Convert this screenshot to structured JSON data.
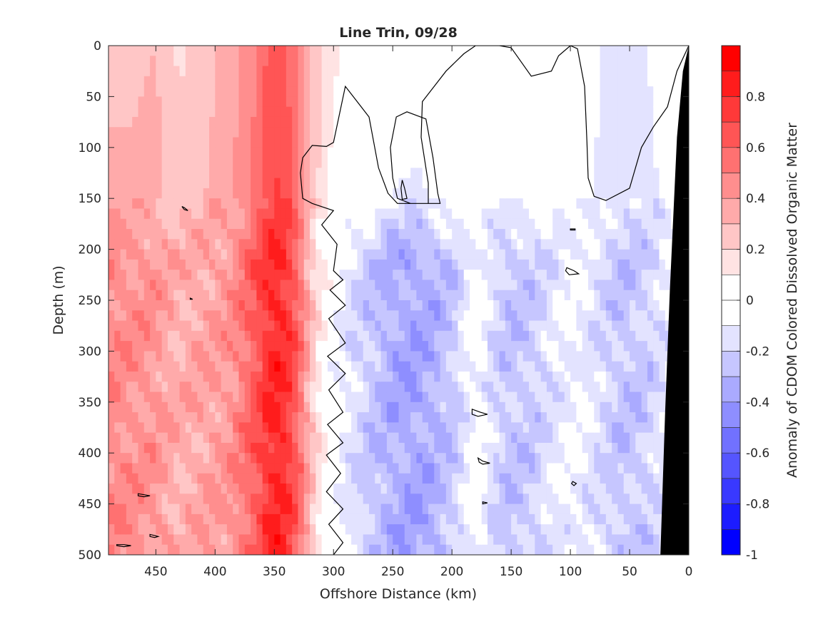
{
  "chart_data": {
    "type": "contourf",
    "title": "Line Trin, 09/28",
    "xlabel": "Offshore Distance (km)",
    "ylabel": "Depth (m)",
    "colorbar_label": "Anomaly of CDOM Colored Dissolved Organic Matter",
    "xlim": [
      490,
      0
    ],
    "x_reversed": true,
    "ylim": [
      0,
      500
    ],
    "y_reversed": true,
    "xticks": [
      450,
      400,
      350,
      300,
      250,
      200,
      150,
      100,
      50,
      0
    ],
    "yticks": [
      0,
      50,
      100,
      150,
      200,
      250,
      300,
      350,
      400,
      450,
      500
    ],
    "clim": [
      -1,
      1
    ],
    "colorbar_ticks": [
      0.8,
      0.6,
      0.4,
      0.2,
      0,
      -0.2,
      -0.4,
      -0.6,
      -0.8,
      -1
    ],
    "colorbar_levels": [
      {
        "lo": 0.9,
        "hi": 1.0,
        "color": "#ff0000"
      },
      {
        "lo": 0.8,
        "hi": 0.9,
        "color": "#ff1c1c"
      },
      {
        "lo": 0.7,
        "hi": 0.8,
        "color": "#ff3939"
      },
      {
        "lo": 0.6,
        "hi": 0.7,
        "color": "#ff5555"
      },
      {
        "lo": 0.5,
        "hi": 0.6,
        "color": "#ff7171"
      },
      {
        "lo": 0.4,
        "hi": 0.5,
        "color": "#ff8e8e"
      },
      {
        "lo": 0.3,
        "hi": 0.4,
        "color": "#ffaaaa"
      },
      {
        "lo": 0.2,
        "hi": 0.3,
        "color": "#ffc6c6"
      },
      {
        "lo": 0.1,
        "hi": 0.2,
        "color": "#ffe3e3"
      },
      {
        "lo": 0.0,
        "hi": 0.1,
        "color": "#ffffff"
      },
      {
        "lo": -0.1,
        "hi": 0.0,
        "color": "#ffffff"
      },
      {
        "lo": -0.2,
        "hi": -0.1,
        "color": "#e3e3ff"
      },
      {
        "lo": -0.3,
        "hi": -0.2,
        "color": "#c6c6ff"
      },
      {
        "lo": -0.4,
        "hi": -0.3,
        "color": "#aaaaff"
      },
      {
        "lo": -0.5,
        "hi": -0.4,
        "color": "#8e8eff"
      },
      {
        "lo": -0.6,
        "hi": -0.5,
        "color": "#7171ff"
      },
      {
        "lo": -0.7,
        "hi": -0.6,
        "color": "#5555ff"
      },
      {
        "lo": -0.8,
        "hi": -0.7,
        "color": "#3939ff"
      },
      {
        "lo": -0.9,
        "hi": -0.8,
        "color": "#1c1cff"
      },
      {
        "lo": -1.0,
        "hi": -0.9,
        "color": "#0000ff"
      }
    ],
    "field_profile": [
      {
        "x": 490,
        "surface": 0.26,
        "deep": 0.48
      },
      {
        "x": 470,
        "surface": 0.27,
        "deep": 0.44
      },
      {
        "x": 450,
        "surface": 0.3,
        "deep": 0.42
      },
      {
        "x": 430,
        "surface": 0.18,
        "deep": 0.32
      },
      {
        "x": 410,
        "surface": 0.25,
        "deep": 0.38
      },
      {
        "x": 390,
        "surface": 0.34,
        "deep": 0.4
      },
      {
        "x": 370,
        "surface": 0.45,
        "deep": 0.58
      },
      {
        "x": 355,
        "surface": 0.62,
        "deep": 0.78
      },
      {
        "x": 345,
        "surface": 0.66,
        "deep": 0.82
      },
      {
        "x": 335,
        "surface": 0.55,
        "deep": 0.7
      },
      {
        "x": 325,
        "surface": 0.4,
        "deep": 0.45
      },
      {
        "x": 315,
        "surface": 0.25,
        "deep": 0.18
      },
      {
        "x": 305,
        "surface": 0.14,
        "deep": 0.02
      },
      {
        "x": 290,
        "surface": 0.08,
        "deep": -0.12
      },
      {
        "x": 270,
        "surface": 0.03,
        "deep": -0.24
      },
      {
        "x": 250,
        "surface": 0.02,
        "deep": -0.34
      },
      {
        "x": 230,
        "surface": 0.0,
        "deep": -0.37
      },
      {
        "x": 210,
        "surface": 0.05,
        "deep": -0.3
      },
      {
        "x": 195,
        "surface": 0.01,
        "deep": -0.2
      },
      {
        "x": 180,
        "surface": 0.0,
        "deep": -0.02
      },
      {
        "x": 165,
        "surface": 0.0,
        "deep": -0.18
      },
      {
        "x": 150,
        "surface": -0.02,
        "deep": -0.26
      },
      {
        "x": 130,
        "surface": 0.01,
        "deep": -0.22
      },
      {
        "x": 110,
        "surface": -0.03,
        "deep": -0.12
      },
      {
        "x": 95,
        "surface": 0.04,
        "deep": -0.08
      },
      {
        "x": 75,
        "surface": -0.1,
        "deep": -0.18
      },
      {
        "x": 55,
        "surface": -0.14,
        "deep": -0.26
      },
      {
        "x": 35,
        "surface": -0.1,
        "deep": -0.22
      },
      {
        "x": 15,
        "surface": -0.02,
        "deep": -0.1
      },
      {
        "x": 0,
        "surface": 0.0,
        "deep": 0.0
      }
    ],
    "bottom_mask": [
      {
        "x": 0,
        "depth": 0
      },
      {
        "x": 5,
        "depth": 25
      },
      {
        "x": 10,
        "depth": 90
      },
      {
        "x": 16,
        "depth": 240
      },
      {
        "x": 20,
        "depth": 360
      },
      {
        "x": 24,
        "depth": 500
      }
    ],
    "bottom_mask_color": "#000000",
    "zero_contour": {
      "main": [
        [
          0,
          0
        ],
        [
          10,
          25
        ],
        [
          18,
          60
        ],
        [
          30,
          80
        ],
        [
          40,
          100
        ],
        [
          50,
          140
        ],
        [
          70,
          152
        ],
        [
          80,
          148
        ],
        [
          85,
          130
        ],
        [
          86,
          95
        ],
        [
          88,
          40
        ],
        [
          94,
          3
        ],
        [
          100,
          0
        ],
        [
          110,
          10
        ],
        [
          116,
          25
        ],
        [
          133,
          30
        ],
        [
          150,
          2
        ],
        [
          160,
          0
        ],
        [
          180,
          0
        ],
        [
          190,
          8
        ],
        [
          205,
          25
        ],
        [
          225,
          55
        ],
        [
          226,
          90
        ],
        [
          220,
          135
        ],
        [
          220,
          155
        ],
        [
          235,
          155
        ],
        [
          246,
          150
        ],
        [
          250,
          130
        ],
        [
          252,
          100
        ],
        [
          247,
          70
        ],
        [
          238,
          65
        ],
        [
          222,
          72
        ],
        [
          216,
          110
        ],
        [
          212,
          145
        ],
        [
          210,
          155
        ],
        [
          246,
          155
        ],
        [
          254,
          145
        ],
        [
          262,
          120
        ],
        [
          270,
          70
        ],
        [
          290,
          40
        ],
        [
          300,
          95
        ],
        [
          306,
          99
        ],
        [
          318,
          98
        ],
        [
          326,
          110
        ],
        [
          328,
          125
        ],
        [
          326,
          150
        ],
        [
          318,
          155
        ],
        [
          300,
          162
        ],
        [
          310,
          176
        ],
        [
          297,
          195
        ],
        [
          300,
          221
        ],
        [
          292,
          230
        ],
        [
          303,
          240
        ],
        [
          290,
          255
        ],
        [
          304,
          268
        ],
        [
          290,
          292
        ],
        [
          305,
          305
        ],
        [
          290,
          322
        ],
        [
          304,
          338
        ],
        [
          292,
          360
        ],
        [
          305,
          372
        ],
        [
          292,
          390
        ],
        [
          306,
          402
        ],
        [
          294,
          420
        ],
        [
          306,
          438
        ],
        [
          292,
          455
        ],
        [
          304,
          470
        ],
        [
          292,
          488
        ],
        [
          300,
          500
        ]
      ],
      "islands": [
        [
          [
            428,
            158
          ],
          [
            426,
            161
          ],
          [
            423,
            162
          ],
          [
            426,
            159
          ],
          [
            428,
            158
          ]
        ],
        [
          [
            183,
            357
          ],
          [
            176,
            360
          ],
          [
            170,
            362
          ],
          [
            178,
            364
          ],
          [
            183,
            362
          ],
          [
            183,
            357
          ]
        ],
        [
          [
            178,
            405
          ],
          [
            174,
            408
          ],
          [
            168,
            410
          ],
          [
            174,
            411
          ],
          [
            177,
            409
          ],
          [
            178,
            405
          ]
        ],
        [
          [
            174,
            448
          ],
          [
            170,
            449
          ],
          [
            174,
            450
          ],
          [
            174,
            448
          ]
        ],
        [
          [
            103,
            218
          ],
          [
            97,
            221
          ],
          [
            93,
            224
          ],
          [
            101,
            225
          ],
          [
            104,
            221
          ],
          [
            103,
            218
          ]
        ],
        [
          [
            100,
            180
          ],
          [
            96,
            180
          ],
          [
            96,
            181
          ],
          [
            100,
            181
          ],
          [
            100,
            180
          ]
        ],
        [
          [
            98,
            428
          ],
          [
            95,
            430
          ],
          [
            97,
            432
          ],
          [
            99,
            430
          ],
          [
            98,
            428
          ]
        ],
        [
          [
            242,
            132
          ],
          [
            240,
            140
          ],
          [
            238,
            150
          ],
          [
            242,
            151
          ],
          [
            243,
            140
          ],
          [
            242,
            132
          ]
        ],
        [
          [
            465,
            440
          ],
          [
            460,
            441
          ],
          [
            455,
            442
          ],
          [
            460,
            443
          ],
          [
            465,
            442
          ],
          [
            465,
            440
          ]
        ],
        [
          [
            455,
            480
          ],
          [
            451,
            481
          ],
          [
            448,
            482
          ],
          [
            451,
            483
          ],
          [
            455,
            482
          ],
          [
            455,
            480
          ]
        ],
        [
          [
            483,
            490
          ],
          [
            477,
            490
          ],
          [
            471,
            491
          ],
          [
            477,
            492
          ],
          [
            483,
            491
          ],
          [
            483,
            490
          ]
        ],
        [
          [
            421,
            248
          ],
          [
            419,
            249
          ],
          [
            421,
            249
          ],
          [
            421,
            248
          ]
        ]
      ]
    }
  }
}
